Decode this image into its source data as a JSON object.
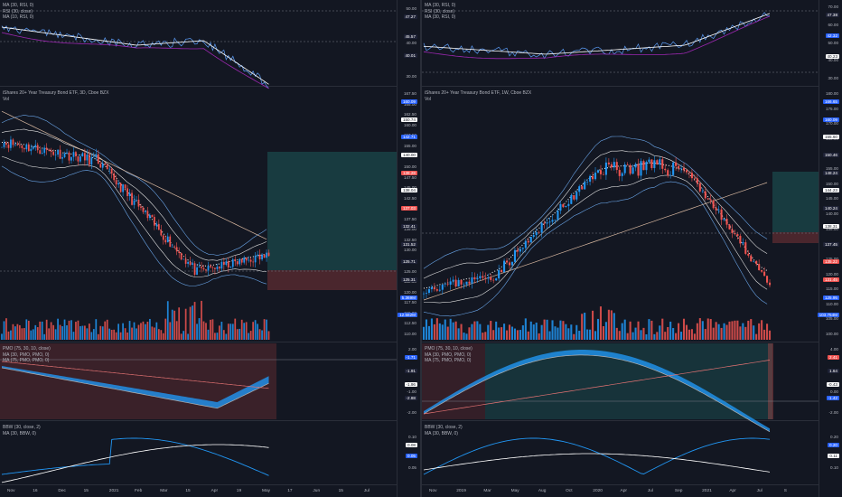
{
  "left": {
    "rsi_legend": [
      "MA (30, RSI, 0)",
      "RSI (30, close)",
      "MA (10, RSI, 0)"
    ],
    "rsi_ticks": [
      "50.00",
      "40.00",
      "30.00"
    ],
    "rsi_tags": [
      {
        "t": "47.27",
        "c": "#1e2236",
        "fg": "#fff"
      },
      {
        "t": "45.57",
        "c": "#1e2236",
        "fg": "#fff"
      },
      {
        "t": "40.01",
        "c": "#1e2236",
        "fg": "#fff"
      }
    ],
    "price_legend": [
      "iShares 20+ Year Treasury Bond ETF, 3D, Cboe BZX",
      "Vol"
    ],
    "price_ticks": [
      "167.50",
      "165.00",
      "162.50",
      "160.00",
      "157.50",
      "155.00",
      "152.50",
      "150.00",
      "147.50",
      "145.00",
      "142.50",
      "140.00",
      "137.50",
      "135.00",
      "132.50",
      "130.00",
      "127.50",
      "125.00",
      "122.50",
      "120.00",
      "117.50",
      "115.00",
      "112.50",
      "110.00"
    ],
    "price_tags": [
      {
        "t": "160.09",
        "c": "#2962ff"
      },
      {
        "t": "150.74",
        "c": "#ffffff",
        "fg": "#131722"
      },
      {
        "t": "142.71",
        "c": "#2962ff"
      },
      {
        "t": "140.00",
        "c": "#ffffff",
        "fg": "#131722"
      },
      {
        "t": "138.28",
        "c": "#ef5350"
      },
      {
        "t": "138.04",
        "c": "#ffffff",
        "fg": "#131722"
      },
      {
        "t": "137.03",
        "c": "#ef5350"
      },
      {
        "t": "132.41",
        "c": "#1e2236"
      },
      {
        "t": "131.52",
        "c": "#1e2236"
      },
      {
        "t": "125.71",
        "c": "#1e2236"
      },
      {
        "t": "125.31",
        "c": "#1e2236"
      },
      {
        "t": "5.369M",
        "c": "#2962ff"
      },
      {
        "t": "12.582M",
        "c": "#2962ff"
      }
    ],
    "pmo_legend": [
      "PMO (75, 30, 10, close)",
      "MA (30, PMO, PMO, 0)",
      "MA (75, PMO, PMO, 0)"
    ],
    "pmo_ticks": [
      "2.00",
      "0.00",
      "-1.00",
      "-2.00"
    ],
    "pmo_tags": [
      {
        "t": "-1.71",
        "c": "#2962ff"
      },
      {
        "t": "-1.91",
        "c": "#1e2236"
      },
      {
        "t": "-1.96",
        "c": "#ffffff",
        "fg": "#131722"
      },
      {
        "t": "-2.88",
        "c": "#1e2236"
      }
    ],
    "bbw_legend": [
      "BBW (30, close, 2)",
      "MA (30, BBW, 0)"
    ],
    "bbw_ticks": [
      "0.10",
      "0.05"
    ],
    "bbw_tags": [
      {
        "t": "0.08",
        "c": "#ffffff",
        "fg": "#131722"
      },
      {
        "t": "0.05",
        "c": "#2962ff"
      }
    ],
    "x_labels": [
      "Nov",
      "16",
      "Dec",
      "15",
      "2021",
      "Feb",
      "Mar",
      "15",
      "Apr",
      "19",
      "May",
      "17",
      "Jun",
      "15",
      "Jul"
    ]
  },
  "right": {
    "rsi_legend": [
      "MA (30, RSI, 0)",
      "RSI (30, close)",
      "MA (30, RSI, 0)"
    ],
    "rsi_ticks": [
      "70.00",
      "60.00",
      "50.00",
      "40.00",
      "30.00"
    ],
    "rsi_tags": [
      {
        "t": "47.38",
        "c": "#1e2236"
      },
      {
        "t": "42.32",
        "c": "#2962ff"
      },
      {
        "t": "40.23",
        "c": "#ffffff",
        "fg": "#131722"
      }
    ],
    "price_legend": [
      "iShares 20+ Year Treasury Bond ETF, 1W, Cboe BZX",
      "Vol"
    ],
    "price_ticks": [
      "180.00",
      "175.00",
      "170.00",
      "165.00",
      "160.00",
      "155.00",
      "150.00",
      "145.00",
      "140.00",
      "135.00",
      "130.00",
      "125.00",
      "120.00",
      "115.00",
      "110.00",
      "105.00",
      "100.00"
    ],
    "price_tags": [
      {
        "t": "166.65",
        "c": "#2962ff"
      },
      {
        "t": "160.09",
        "c": "#2962ff"
      },
      {
        "t": "155.60",
        "c": "#ffffff",
        "fg": "#131722"
      },
      {
        "t": "150.46",
        "c": "#1e2236"
      },
      {
        "t": "148.24",
        "c": "#1e2236"
      },
      {
        "t": "144.23",
        "c": "#ffffff",
        "fg": "#131722"
      },
      {
        "t": "140.24",
        "c": "#1e2236"
      },
      {
        "t": "138.31",
        "c": "#ffffff",
        "fg": "#131722"
      },
      {
        "t": "137.45",
        "c": "#1e2236"
      },
      {
        "t": "135.22",
        "c": "#ef5350"
      },
      {
        "t": "131.45",
        "c": "#ef5350"
      },
      {
        "t": "125.95",
        "c": "#2962ff"
      },
      {
        "t": "103.754M",
        "c": "#2962ff"
      }
    ],
    "pmo_legend": [
      "PMO (75, 30, 10, close)",
      "MA (30, PMO, PMO, 0)",
      "MA (75, PMO, PMO, 0)"
    ],
    "pmo_ticks": [
      "4.00",
      "2.00",
      "0.00",
      "-2.00"
    ],
    "pmo_tags": [
      {
        "t": "2.41",
        "c": "#ef5350"
      },
      {
        "t": "1.64",
        "c": "#1e2236"
      },
      {
        "t": "-0.43",
        "c": "#ffffff",
        "fg": "#131722"
      },
      {
        "t": "-1.42",
        "c": "#2962ff"
      }
    ],
    "bbw_legend": [
      "BBW (30, close, 2)",
      "MA (30, BBW, 0)"
    ],
    "bbw_ticks": [
      "0.20",
      "0.10"
    ],
    "bbw_tags": [
      {
        "t": "0.20",
        "c": "#2962ff"
      },
      {
        "t": "0.11",
        "c": "#ffffff",
        "fg": "#131722"
      }
    ],
    "x_labels": [
      "Nov",
      "2019",
      "Mar",
      "May",
      "Aug",
      "Oct",
      "2020",
      "Apr",
      "Jul",
      "Sep",
      "2021",
      "Apr",
      "Jul",
      "S"
    ]
  },
  "colors": {
    "bg": "#131722",
    "up": "#2196f3",
    "down": "#ef5350",
    "grid": "#2a2e39"
  }
}
